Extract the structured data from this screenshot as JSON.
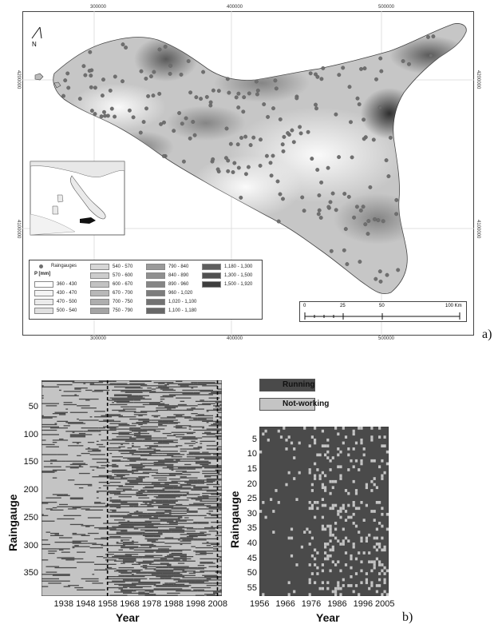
{
  "map": {
    "top_ticks": [
      "300000",
      "400000",
      "500000"
    ],
    "bottom_ticks": [
      "300000",
      "400000",
      "500000"
    ],
    "left_ticks": [
      "4200000",
      "4100000"
    ],
    "right_ticks": [
      "4200000",
      "4100000"
    ],
    "north_label": "N",
    "legend": {
      "raingauges_label": "Raingauges",
      "p_label": "P [mm]",
      "classes": [
        {
          "label": "360 - 430",
          "color": "#ffffff"
        },
        {
          "label": "430 - 470",
          "color": "#f4f4f4"
        },
        {
          "label": "470 - 500",
          "color": "#ebebeb"
        },
        {
          "label": "500 - 540",
          "color": "#e0e0e0"
        },
        {
          "label": "540 - 570",
          "color": "#d6d6d6"
        },
        {
          "label": "570 - 600",
          "color": "#cccccc"
        },
        {
          "label": "600 - 670",
          "color": "#c2c2c2"
        },
        {
          "label": "670 - 700",
          "color": "#b8b8b8"
        },
        {
          "label": "700 - 750",
          "color": "#aeaeae"
        },
        {
          "label": "750 - 790",
          "color": "#a4a4a4"
        },
        {
          "label": "790 - 840",
          "color": "#9a9a9a"
        },
        {
          "label": "840 - 890",
          "color": "#909090"
        },
        {
          "label": "890 - 960",
          "color": "#868686"
        },
        {
          "label": "960 - 1,020",
          "color": "#7c7c7c"
        },
        {
          "label": "1,020 - 1,100",
          "color": "#727272"
        },
        {
          "label": "1,100 - 1,180",
          "color": "#686868"
        },
        {
          "label": "1,180 - 1,300",
          "color": "#5e5e5e"
        },
        {
          "label": "1,300 - 1,500",
          "color": "#505050"
        },
        {
          "label": "1,500 - 1,920",
          "color": "#3e3e3e"
        }
      ]
    },
    "scale": {
      "labels": [
        "0",
        "25",
        "50",
        "100 Km"
      ]
    },
    "panel_label": "a)"
  },
  "chart_data": [
    {
      "type": "heatmap",
      "title": "",
      "xlabel": "Year",
      "ylabel": "Raingauge",
      "x_tick_labels": [
        "1938",
        "1948",
        "1958",
        "1968",
        "1978",
        "1988",
        "1998",
        "2008"
      ],
      "y_tick_labels": [
        "50",
        "100",
        "150",
        "200",
        "250",
        "300",
        "350"
      ],
      "xlim": [
        1928,
        2010
      ],
      "ylim": [
        1,
        390
      ],
      "reference_lines_x": [
        1958,
        2008
      ],
      "legend": [
        "Running",
        "Not-working"
      ],
      "colors": {
        "running": "#4a4a4a",
        "not_working": "#c4c4c4"
      }
    },
    {
      "type": "heatmap",
      "title": "",
      "xlabel": "Year",
      "ylabel": "Raingauge",
      "x_tick_labels": [
        "1956",
        "1966",
        "1976",
        "1986",
        "1996",
        "2005"
      ],
      "y_tick_labels": [
        "5",
        "10",
        "15",
        "20",
        "25",
        "30",
        "35",
        "40",
        "45",
        "50",
        "55"
      ],
      "xlim": [
        1956,
        2005
      ],
      "ylim": [
        1,
        57
      ],
      "colors": {
        "running": "#4a4a4a",
        "not_working": "#c4c4c4"
      }
    }
  ],
  "legend2": {
    "running": "Running",
    "not_working": "Not-working"
  },
  "panel_label_b": "b)"
}
